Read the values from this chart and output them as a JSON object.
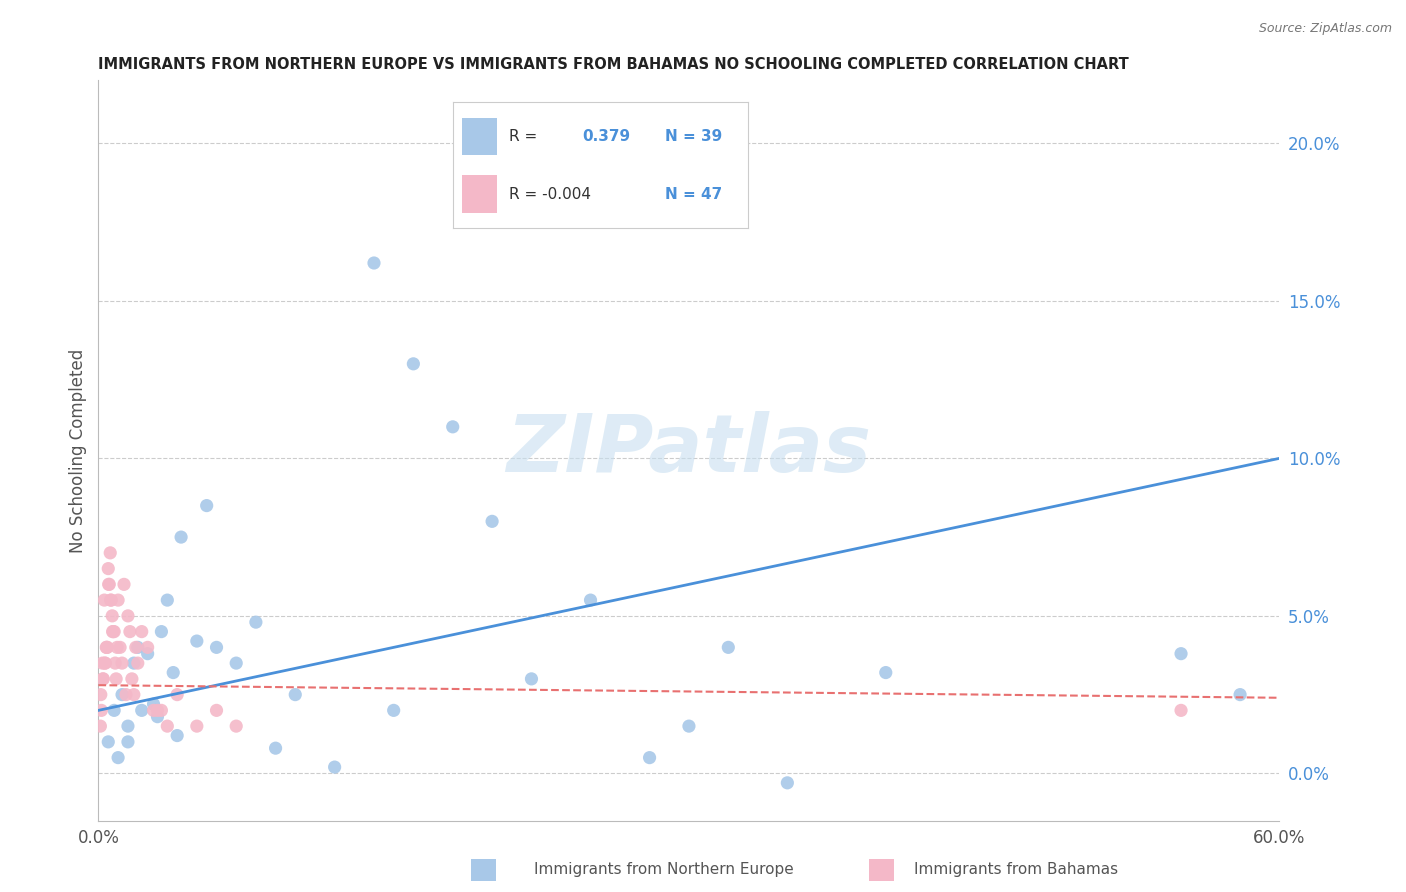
{
  "title": "IMMIGRANTS FROM NORTHERN EUROPE VS IMMIGRANTS FROM BAHAMAS NO SCHOOLING COMPLETED CORRELATION CHART",
  "source": "Source: ZipAtlas.com",
  "ylabel": "No Schooling Completed",
  "ytick_vals": [
    0.0,
    5.0,
    10.0,
    15.0,
    20.0
  ],
  "blue_color": "#a8c8e8",
  "pink_color": "#f4b8c8",
  "blue_line_color": "#4a90d9",
  "pink_line_color": "#e87070",
  "blue_r": 0.379,
  "blue_n": 39,
  "pink_r": -0.004,
  "pink_n": 47,
  "blue_scatter_x": [
    0.5,
    1.0,
    1.2,
    1.5,
    1.8,
    2.0,
    2.2,
    2.5,
    2.8,
    3.0,
    3.2,
    3.5,
    3.8,
    4.0,
    4.2,
    5.0,
    5.5,
    6.0,
    7.0,
    8.0,
    9.0,
    10.0,
    12.0,
    14.0,
    15.0,
    16.0,
    18.0,
    20.0,
    22.0,
    25.0,
    28.0,
    30.0,
    32.0,
    35.0,
    40.0,
    55.0,
    58.0,
    0.8,
    1.5
  ],
  "blue_scatter_y": [
    1.0,
    0.5,
    2.5,
    1.5,
    3.5,
    4.0,
    2.0,
    3.8,
    2.2,
    1.8,
    4.5,
    5.5,
    3.2,
    1.2,
    7.5,
    4.2,
    8.5,
    4.0,
    3.5,
    4.8,
    0.8,
    2.5,
    0.2,
    16.2,
    2.0,
    13.0,
    11.0,
    8.0,
    3.0,
    5.5,
    0.5,
    1.5,
    4.0,
    -0.3,
    3.2,
    3.8,
    2.5,
    2.0,
    1.0
  ],
  "pink_scatter_x": [
    0.1,
    0.15,
    0.2,
    0.25,
    0.3,
    0.35,
    0.4,
    0.45,
    0.5,
    0.55,
    0.6,
    0.65,
    0.7,
    0.75,
    0.8,
    0.85,
    0.9,
    0.95,
    1.0,
    1.1,
    1.2,
    1.3,
    1.4,
    1.5,
    1.6,
    1.7,
    1.8,
    1.9,
    2.0,
    2.2,
    2.5,
    2.8,
    3.0,
    3.5,
    4.0,
    5.0,
    6.0,
    7.0,
    55.0,
    0.12,
    0.22,
    0.32,
    0.42,
    0.52,
    0.62,
    0.72,
    3.2
  ],
  "pink_scatter_y": [
    1.5,
    2.0,
    3.5,
    3.0,
    5.5,
    3.5,
    4.0,
    4.0,
    6.5,
    6.0,
    7.0,
    5.5,
    5.0,
    4.5,
    4.5,
    3.5,
    3.0,
    4.0,
    5.5,
    4.0,
    3.5,
    6.0,
    2.5,
    5.0,
    4.5,
    3.0,
    2.5,
    4.0,
    3.5,
    4.5,
    4.0,
    2.0,
    2.0,
    1.5,
    2.5,
    1.5,
    2.0,
    1.5,
    2.0,
    2.5,
    3.0,
    3.5,
    4.0,
    6.0,
    5.5,
    4.5,
    2.0
  ],
  "blue_line_x": [
    0,
    60
  ],
  "blue_line_y": [
    2.0,
    10.0
  ],
  "pink_line_x": [
    0,
    60
  ],
  "pink_line_y": [
    2.8,
    2.4
  ],
  "xlim": [
    0,
    60
  ],
  "ylim": [
    -1.5,
    22
  ],
  "figsize": [
    14.06,
    8.92
  ],
  "dpi": 100
}
